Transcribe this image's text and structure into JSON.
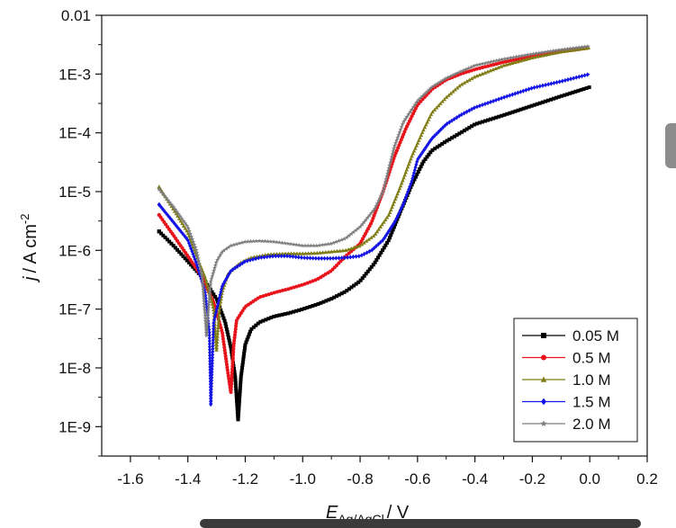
{
  "chart_data": {
    "type": "line",
    "xlabel_main": "E",
    "xlabel_sub": "Ag/AgCl",
    "xlabel_unit": "/ V",
    "ylabel_main": "j",
    "ylabel_unit": "/ A cm",
    "ylabel_exp": "-2",
    "xlim": [
      -1.7,
      0.2
    ],
    "ylim_log10": [
      -9.5,
      -2
    ],
    "y_scale": "log",
    "x_ticks": [
      -1.6,
      -1.4,
      -1.2,
      -1.0,
      -0.8,
      -0.6,
      -0.4,
      -0.2,
      0.0,
      0.2
    ],
    "x_tick_labels": [
      "-1.6",
      "-1.4",
      "-1.2",
      "-1.0",
      "-0.8",
      "-0.6",
      "-0.4",
      "-0.2",
      "0.0",
      "0.2"
    ],
    "y_ticks_log10": [
      -2,
      -3,
      -4,
      -5,
      -6,
      -7,
      -8,
      -9
    ],
    "y_tick_labels": [
      "0.01",
      "1E-3",
      "1E-4",
      "1E-5",
      "1E-6",
      "1E-7",
      "1E-8",
      "1E-9"
    ],
    "legend_position": "bottom-right",
    "series": [
      {
        "name": "0.05 M",
        "color": "#000000",
        "marker": "square",
        "x": [
          -1.5,
          -1.45,
          -1.4,
          -1.35,
          -1.3,
          -1.27,
          -1.25,
          -1.235,
          -1.225,
          -1.215,
          -1.2,
          -1.18,
          -1.15,
          -1.1,
          -1.05,
          -1.0,
          -0.95,
          -0.9,
          -0.85,
          -0.8,
          -0.75,
          -0.7,
          -0.66,
          -0.62,
          -0.58,
          -0.55,
          -0.5,
          -0.45,
          -0.4,
          -0.3,
          -0.2,
          -0.1,
          0.0
        ],
        "y": [
          2.1e-06,
          1.2e-06,
          6.5e-07,
          3.5e-07,
          1.5e-07,
          6e-08,
          2.2e-08,
          7e-09,
          1.3e-09,
          7e-09,
          2.5e-08,
          4.5e-08,
          6e-08,
          7.5e-08,
          8.5e-08,
          1e-07,
          1.2e-07,
          1.5e-07,
          2e-07,
          3e-07,
          6e-07,
          1.5e-06,
          4.5e-06,
          1.3e-05,
          3.2e-05,
          5e-05,
          7.2e-05,
          0.0001,
          0.00014,
          0.0002,
          0.00029,
          0.00042,
          0.0006
        ]
      },
      {
        "name": "0.5 M",
        "color": "#e8141c",
        "marker": "circle",
        "x": [
          -1.5,
          -1.45,
          -1.4,
          -1.35,
          -1.31,
          -1.28,
          -1.26,
          -1.25,
          -1.24,
          -1.23,
          -1.2,
          -1.15,
          -1.1,
          -1.05,
          -1.0,
          -0.95,
          -0.9,
          -0.85,
          -0.8,
          -0.76,
          -0.72,
          -0.68,
          -0.64,
          -0.6,
          -0.55,
          -0.5,
          -0.45,
          -0.4,
          -0.3,
          -0.2,
          -0.1,
          0.0
        ],
        "y": [
          4e-06,
          1.8e-06,
          8e-07,
          3.5e-07,
          1.3e-07,
          4e-08,
          8e-09,
          3.8e-09,
          2.5e-08,
          6.5e-08,
          1.1e-07,
          1.6e-07,
          1.9e-07,
          2.2e-07,
          2.6e-07,
          3.2e-07,
          4.5e-07,
          8e-07,
          1.3e-06,
          3e-06,
          1e-05,
          4e-05,
          0.00012,
          0.0003,
          0.00055,
          0.0008,
          0.001,
          0.0012,
          0.0016,
          0.002,
          0.0024,
          0.0028
        ]
      },
      {
        "name": "1.0 M",
        "color": "#807d14",
        "marker": "triangle",
        "x": [
          -1.5,
          -1.45,
          -1.4,
          -1.37,
          -1.34,
          -1.31,
          -1.3,
          -1.29,
          -1.28,
          -1.26,
          -1.22,
          -1.18,
          -1.12,
          -1.06,
          -1.0,
          -0.95,
          -0.9,
          -0.85,
          -0.8,
          -0.75,
          -0.7,
          -0.66,
          -0.62,
          -0.58,
          -0.55,
          -0.5,
          -0.45,
          -0.4,
          -0.3,
          -0.2,
          -0.1,
          0.0
        ],
        "y": [
          1.2e-05,
          5e-06,
          2e-06,
          8e-07,
          3.5e-07,
          1e-07,
          2e-08,
          1e-07,
          2e-07,
          4e-07,
          6e-07,
          7.5e-07,
          8.5e-07,
          8.8e-07,
          8.8e-07,
          9e-07,
          9.5e-07,
          1e-06,
          1.2e-06,
          1.8e-06,
          4e-06,
          1.2e-05,
          4e-05,
          0.00011,
          0.00022,
          0.0004,
          0.00065,
          0.0009,
          0.0014,
          0.0019,
          0.0024,
          0.0028
        ]
      },
      {
        "name": "1.5 M",
        "color": "#1414e6",
        "marker": "diamond",
        "x": [
          -1.5,
          -1.45,
          -1.4,
          -1.37,
          -1.34,
          -1.325,
          -1.32,
          -1.31,
          -1.28,
          -1.25,
          -1.2,
          -1.15,
          -1.1,
          -1.05,
          -1.0,
          -0.95,
          -0.9,
          -0.85,
          -0.8,
          -0.76,
          -0.72,
          -0.68,
          -0.65,
          -0.62,
          -0.6,
          -0.55,
          -0.5,
          -0.45,
          -0.4,
          -0.3,
          -0.2,
          -0.1,
          0.0
        ],
        "y": [
          6e-06,
          3e-06,
          1.5e-06,
          6e-07,
          2e-07,
          4e-08,
          2.3e-09,
          6e-08,
          2.5e-07,
          4.5e-07,
          6.5e-07,
          7.5e-07,
          8e-07,
          8e-07,
          7.5e-07,
          7.3e-07,
          7.3e-07,
          7.5e-07,
          8e-07,
          1e-06,
          1.5e-06,
          3e-06,
          6e-06,
          1.5e-05,
          3.5e-05,
          8e-05,
          0.00014,
          0.0002,
          0.00027,
          0.0004,
          0.00058,
          0.00075,
          0.001
        ]
      },
      {
        "name": "2.0 M",
        "color": "#7d7d7d",
        "marker": "star",
        "x": [
          -1.5,
          -1.45,
          -1.4,
          -1.37,
          -1.35,
          -1.34,
          -1.335,
          -1.33,
          -1.32,
          -1.3,
          -1.28,
          -1.25,
          -1.2,
          -1.15,
          -1.1,
          -1.05,
          -1.0,
          -0.95,
          -0.9,
          -0.85,
          -0.8,
          -0.75,
          -0.72,
          -0.7,
          -0.68,
          -0.65,
          -0.6,
          -0.55,
          -0.5,
          -0.45,
          -0.4,
          -0.3,
          -0.2,
          -0.1,
          0.0
        ],
        "y": [
          1.1e-05,
          5.5e-06,
          2.5e-06,
          1e-06,
          3.5e-07,
          8e-08,
          3.5e-08,
          8e-08,
          3e-07,
          6.5e-07,
          9.5e-07,
          1.2e-06,
          1.4e-06,
          1.45e-06,
          1.4e-06,
          1.3e-06,
          1.2e-06,
          1.2e-06,
          1.3e-06,
          1.6e-06,
          2.5e-06,
          5e-06,
          1e-05,
          2.5e-05,
          6e-05,
          0.00015,
          0.00035,
          0.0006,
          0.00085,
          0.0011,
          0.0014,
          0.0018,
          0.0022,
          0.0026,
          0.003
        ]
      }
    ]
  }
}
